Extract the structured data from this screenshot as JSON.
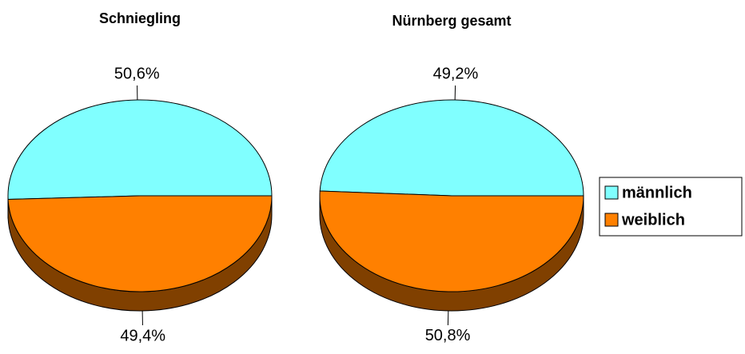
{
  "chart_data": [
    {
      "type": "pie",
      "title": "Schniegling",
      "categories": [
        "männlich",
        "weiblich"
      ],
      "values": [
        50.6,
        49.4
      ],
      "value_labels": [
        "50,6%",
        "49,4%"
      ],
      "colors": [
        "#80ffff",
        "#ff8000"
      ]
    },
    {
      "type": "pie",
      "title": "Nürnberg gesamt",
      "categories": [
        "männlich",
        "weiblich"
      ],
      "values": [
        49.2,
        50.8
      ],
      "value_labels": [
        "49,2%",
        "50,8%"
      ],
      "colors": [
        "#80ffff",
        "#ff8000"
      ]
    }
  ]
}
